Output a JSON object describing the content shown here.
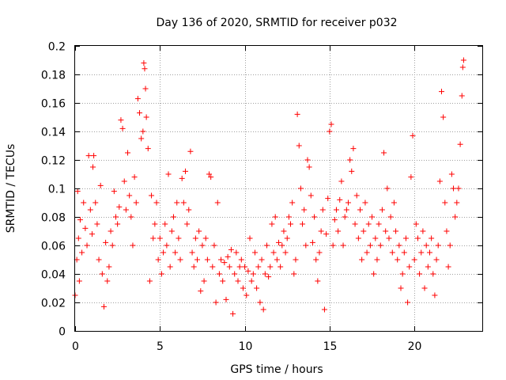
{
  "chart_data": {
    "type": "scatter",
    "title": "Day 136 of 2020, SRMTID for receiver p032",
    "xlabel": "GPS time / hours",
    "ylabel": "SRMTID / TECUs",
    "xlim": [
      0,
      24
    ],
    "ylim": [
      0,
      0.2
    ],
    "xticks": [
      0,
      5,
      10,
      15,
      20
    ],
    "xtick_labels": [
      "0",
      "5",
      "10",
      "15",
      "20"
    ],
    "yticks": [
      0,
      0.02,
      0.04,
      0.06,
      0.08,
      0.1,
      0.12,
      0.14,
      0.16,
      0.18,
      0.2
    ],
    "ytick_labels": [
      "0",
      "0.02",
      "0.04",
      "0.06",
      "0.08",
      "0.1",
      "0.12",
      "0.14",
      "0.16",
      "0.18",
      "0.2"
    ],
    "grid": true,
    "marker": "+",
    "marker_color": "#ff0000",
    "series": [
      {
        "name": "SRMTID",
        "x": [
          0.0,
          0.1,
          0.15,
          0.2,
          0.25,
          0.3,
          0.4,
          0.5,
          0.6,
          0.7,
          0.8,
          0.9,
          1.0,
          1.05,
          1.1,
          1.2,
          1.3,
          1.4,
          1.5,
          1.6,
          1.7,
          1.8,
          1.9,
          2.0,
          2.1,
          2.2,
          2.3,
          2.4,
          2.5,
          2.6,
          2.7,
          2.8,
          2.9,
          3.0,
          3.1,
          3.2,
          3.3,
          3.4,
          3.5,
          3.6,
          3.7,
          3.8,
          3.9,
          4.0,
          4.05,
          4.1,
          4.15,
          4.2,
          4.3,
          4.4,
          4.5,
          4.6,
          4.7,
          4.8,
          4.9,
          5.0,
          5.1,
          5.2,
          5.3,
          5.4,
          5.5,
          5.6,
          5.7,
          5.8,
          5.9,
          6.0,
          6.1,
          6.2,
          6.3,
          6.4,
          6.5,
          6.6,
          6.7,
          6.8,
          6.9,
          7.0,
          7.1,
          7.2,
          7.3,
          7.4,
          7.5,
          7.6,
          7.7,
          7.8,
          7.9,
          8.0,
          8.1,
          8.2,
          8.3,
          8.4,
          8.5,
          8.6,
          8.7,
          8.8,
          8.9,
          9.0,
          9.1,
          9.2,
          9.3,
          9.4,
          9.5,
          9.6,
          9.7,
          9.8,
          9.9,
          10.0,
          10.1,
          10.2,
          10.3,
          10.4,
          10.5,
          10.6,
          10.7,
          10.8,
          10.9,
          11.0,
          11.1,
          11.2,
          11.3,
          11.4,
          11.5,
          11.6,
          11.7,
          11.8,
          11.9,
          12.0,
          12.1,
          12.2,
          12.3,
          12.4,
          12.5,
          12.6,
          12.7,
          12.8,
          12.9,
          13.0,
          13.1,
          13.2,
          13.3,
          13.4,
          13.5,
          13.6,
          13.7,
          13.8,
          13.9,
          14.0,
          14.1,
          14.2,
          14.3,
          14.4,
          14.5,
          14.6,
          14.7,
          14.8,
          14.9,
          15.0,
          15.1,
          15.2,
          15.3,
          15.4,
          15.5,
          15.6,
          15.7,
          15.8,
          15.9,
          16.0,
          16.1,
          16.2,
          16.3,
          16.4,
          16.5,
          16.6,
          16.7,
          16.8,
          16.9,
          17.0,
          17.1,
          17.2,
          17.3,
          17.4,
          17.5,
          17.6,
          17.7,
          17.8,
          17.9,
          18.0,
          18.1,
          18.2,
          18.3,
          18.4,
          18.5,
          18.6,
          18.7,
          18.8,
          18.9,
          19.0,
          19.1,
          19.2,
          19.3,
          19.4,
          19.5,
          19.6,
          19.7,
          19.8,
          19.9,
          20.0,
          20.1,
          20.2,
          20.3,
          20.4,
          20.5,
          20.6,
          20.7,
          20.8,
          20.9,
          21.0,
          21.1,
          21.2,
          21.3,
          21.4,
          21.5,
          21.6,
          21.7,
          21.8,
          21.9,
          22.0,
          22.1,
          22.2,
          22.3,
          22.4,
          22.5,
          22.6,
          22.7,
          22.8,
          22.85,
          22.9
        ],
        "y": [
          0.025,
          0.05,
          0.098,
          0.065,
          0.035,
          0.078,
          0.055,
          0.09,
          0.072,
          0.06,
          0.123,
          0.085,
          0.068,
          0.115,
          0.123,
          0.09,
          0.075,
          0.05,
          0.102,
          0.04,
          0.017,
          0.062,
          0.035,
          0.045,
          0.07,
          0.06,
          0.098,
          0.08,
          0.075,
          0.087,
          0.148,
          0.142,
          0.105,
          0.085,
          0.125,
          0.095,
          0.08,
          0.06,
          0.108,
          0.09,
          0.163,
          0.153,
          0.135,
          0.14,
          0.188,
          0.184,
          0.17,
          0.15,
          0.128,
          0.035,
          0.095,
          0.065,
          0.075,
          0.09,
          0.05,
          0.065,
          0.04,
          0.055,
          0.075,
          0.06,
          0.11,
          0.045,
          0.07,
          0.08,
          0.055,
          0.09,
          0.065,
          0.05,
          0.107,
          0.09,
          0.112,
          0.075,
          0.085,
          0.126,
          0.055,
          0.045,
          0.065,
          0.05,
          0.07,
          0.028,
          0.06,
          0.035,
          0.065,
          0.05,
          0.11,
          0.108,
          0.045,
          0.06,
          0.02,
          0.09,
          0.04,
          0.05,
          0.035,
          0.048,
          0.022,
          0.052,
          0.045,
          0.057,
          0.012,
          0.04,
          0.055,
          0.035,
          0.045,
          0.05,
          0.03,
          0.045,
          0.025,
          0.042,
          0.065,
          0.035,
          0.04,
          0.055,
          0.03,
          0.045,
          0.02,
          0.05,
          0.015,
          0.04,
          0.06,
          0.038,
          0.045,
          0.075,
          0.055,
          0.08,
          0.05,
          0.062,
          0.045,
          0.06,
          0.07,
          0.055,
          0.065,
          0.08,
          0.075,
          0.09,
          0.04,
          0.05,
          0.152,
          0.13,
          0.1,
          0.075,
          0.085,
          0.06,
          0.12,
          0.115,
          0.095,
          0.062,
          0.08,
          0.05,
          0.035,
          0.055,
          0.07,
          0.085,
          0.015,
          0.068,
          0.093,
          0.14,
          0.145,
          0.06,
          0.078,
          0.085,
          0.07,
          0.092,
          0.105,
          0.06,
          0.08,
          0.085,
          0.09,
          0.12,
          0.112,
          0.128,
          0.075,
          0.095,
          0.065,
          0.085,
          0.05,
          0.07,
          0.09,
          0.055,
          0.075,
          0.06,
          0.08,
          0.04,
          0.065,
          0.05,
          0.075,
          0.06,
          0.085,
          0.125,
          0.07,
          0.1,
          0.065,
          0.08,
          0.055,
          0.09,
          0.07,
          0.05,
          0.06,
          0.03,
          0.04,
          0.055,
          0.065,
          0.02,
          0.045,
          0.108,
          0.137,
          0.05,
          0.075,
          0.065,
          0.04,
          0.055,
          0.07,
          0.03,
          0.06,
          0.045,
          0.055,
          0.065,
          0.04,
          0.025,
          0.05,
          0.06,
          0.105,
          0.168,
          0.15,
          0.09,
          0.07,
          0.045,
          0.06,
          0.11,
          0.1,
          0.08,
          0.09,
          0.1,
          0.131,
          0.165,
          0.185,
          0.19
        ]
      }
    ]
  }
}
